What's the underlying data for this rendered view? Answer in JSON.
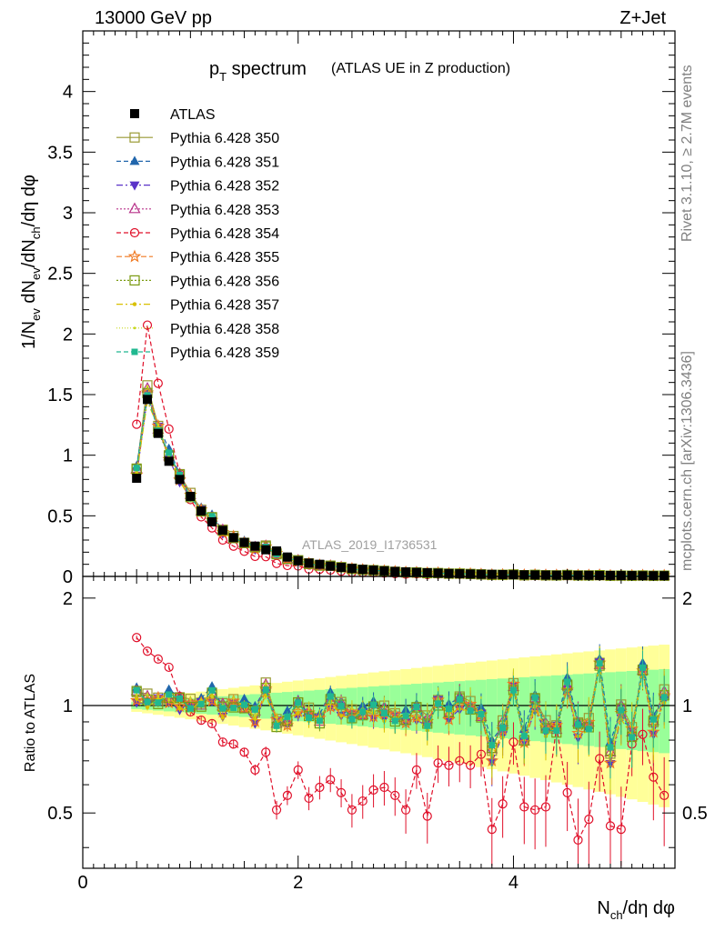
{
  "header": {
    "left": "13000 GeV pp",
    "right": "Z+Jet"
  },
  "side": {
    "rivet": "Rivet 3.1.10, ≥ 2.7M events",
    "mcplots": "mcplots.cern.ch [arXiv:1306.3436]"
  },
  "chart_data": {
    "type": "line",
    "title": "p_T spectrum (ATLAS UE in Z production)",
    "title_main": "p",
    "title_sub": "T",
    "title_rest": " spectrum",
    "title_paren": "(ATLAS UE in Z production)",
    "watermark": "ATLAS_2019_I1736531",
    "ylabel": "1/N_ev dN_ev/dN_ch/dη dφ",
    "ratio_ylabel": "Ratio to ATLAS",
    "xlabel": "N_ch/dη dφ",
    "xlim": [
      0,
      5.5
    ],
    "ylim": [
      0,
      4.5
    ],
    "ratio_ylim": [
      0.35,
      2.3
    ],
    "x_ticks": [
      "0",
      "2",
      "4"
    ],
    "y_ticks": [
      "0",
      "0.5",
      "1",
      "1.5",
      "2",
      "2.5",
      "3",
      "3.5",
      "4"
    ],
    "ratio_ticks": [
      "0.5",
      "1",
      "2"
    ],
    "x": [
      0.5,
      0.6,
      0.7,
      0.8,
      0.9,
      1.0,
      1.1,
      1.2,
      1.3,
      1.4,
      1.5,
      1.6,
      1.7,
      1.8,
      1.9,
      2.0,
      2.1,
      2.2,
      2.3,
      2.4,
      2.5,
      2.6,
      2.7,
      2.8,
      2.9,
      3.0,
      3.1,
      3.2,
      3.3,
      3.4,
      3.5,
      3.6,
      3.7,
      3.8,
      3.9,
      4.0,
      4.1,
      4.2,
      4.3,
      4.4,
      4.5,
      4.6,
      4.7,
      4.8,
      4.9,
      5.0,
      5.1,
      5.2,
      5.3,
      5.4
    ],
    "atlas": {
      "name": "ATLAS",
      "values": [
        0.81,
        1.46,
        1.18,
        0.95,
        0.8,
        0.66,
        0.54,
        0.45,
        0.38,
        0.32,
        0.28,
        0.25,
        0.22,
        0.21,
        0.16,
        0.13,
        0.11,
        0.1,
        0.085,
        0.075,
        0.066,
        0.058,
        0.052,
        0.046,
        0.041,
        0.037,
        0.033,
        0.03,
        0.027,
        0.024,
        0.022,
        0.02,
        0.018,
        0.017,
        0.015,
        0.014,
        0.013,
        0.012,
        0.011,
        0.01,
        0.01,
        0.009,
        0.009,
        0.008,
        0.008,
        0.007,
        0.007,
        0.006,
        0.006,
        0.006
      ]
    },
    "series": [
      {
        "name": "Pythia 6.428 350",
        "color": "#999933",
        "marker": "square-open",
        "dash": "solid"
      },
      {
        "name": "Pythia 6.428 351",
        "color": "#2166ac",
        "marker": "triangle-up",
        "dash": "5,3"
      },
      {
        "name": "Pythia 6.428 352",
        "color": "#5a32c8",
        "marker": "triangle-down",
        "dash": "7,3,2,3"
      },
      {
        "name": "Pythia 6.428 353",
        "color": "#b8338a",
        "marker": "triangle-open",
        "dash": "2,2"
      },
      {
        "name": "Pythia 6.428 354",
        "color": "#e0102a",
        "marker": "circle-open",
        "dash": "5,3"
      },
      {
        "name": "Pythia 6.428 355",
        "color": "#f07820",
        "marker": "star-open",
        "dash": "6,3"
      },
      {
        "name": "Pythia 6.428 356",
        "color": "#7a9a10",
        "marker": "square-open",
        "dash": "2,2"
      },
      {
        "name": "Pythia 6.428 357",
        "color": "#d8c000",
        "marker": "dot",
        "dash": "7,3,2,3"
      },
      {
        "name": "Pythia 6.428 358",
        "color": "#c8d820",
        "marker": "dot-small",
        "dash": "1,2"
      },
      {
        "name": "Pythia 6.428 359",
        "color": "#20b890",
        "marker": "square",
        "dash": "5,3"
      }
    ],
    "ratio_common": [
      1.07,
      1.03,
      1.04,
      1.05,
      1.02,
      1.0,
      1.02,
      1.07,
      0.97,
      1.01,
      1.0,
      0.94,
      1.11,
      0.9,
      0.91,
      0.99,
      0.94,
      0.92,
      1.03,
      0.98,
      0.94,
      0.96,
      0.97,
      0.95,
      0.93,
      0.92,
      0.96,
      0.89,
      1.03,
      0.95,
      1.02,
      0.99,
      0.95,
      0.74,
      0.86,
      1.13,
      0.81,
      1.02,
      0.86,
      0.87,
      1.14,
      0.86,
      0.88,
      1.32,
      0.73,
      0.96,
      0.84,
      1.27,
      0.88,
      1.06
    ],
    "ratio_354": [
      1.55,
      1.42,
      1.35,
      1.28,
      1.06,
      0.96,
      0.91,
      0.89,
      0.79,
      0.78,
      0.74,
      0.66,
      0.74,
      0.51,
      0.56,
      0.66,
      0.55,
      0.59,
      0.62,
      0.57,
      0.51,
      0.54,
      0.58,
      0.59,
      0.56,
      0.51,
      0.66,
      0.49,
      0.69,
      0.68,
      0.7,
      0.68,
      0.73,
      0.45,
      0.53,
      0.79,
      0.52,
      0.51,
      0.52,
      0.87,
      0.57,
      0.42,
      0.48,
      0.71,
      0.46,
      0.45,
      0.78,
      0.83,
      0.63,
      0.56
    ]
  }
}
